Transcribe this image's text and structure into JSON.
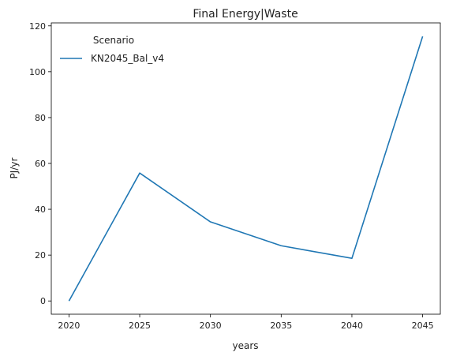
{
  "chart_data": {
    "type": "line",
    "title": "Final Energy|Waste",
    "xlabel": "years",
    "ylabel": "PJ/yr",
    "x": [
      2020,
      2025,
      2030,
      2035,
      2040,
      2045
    ],
    "xticks": [
      2020,
      2025,
      2030,
      2035,
      2040,
      2045
    ],
    "yticks": [
      0,
      20,
      40,
      60,
      80,
      100,
      120
    ],
    "xlim": [
      2018.75,
      2046.25
    ],
    "ylim": [
      -5.78,
      121.3
    ],
    "legend": {
      "title": "Scenario",
      "placement": "top-left"
    },
    "grid": false,
    "series": [
      {
        "name": "KN2045_Bal_v4",
        "color": "#1f77b4",
        "values": [
          0.0,
          55.8,
          34.5,
          24.1,
          18.6,
          115.4
        ]
      }
    ]
  }
}
